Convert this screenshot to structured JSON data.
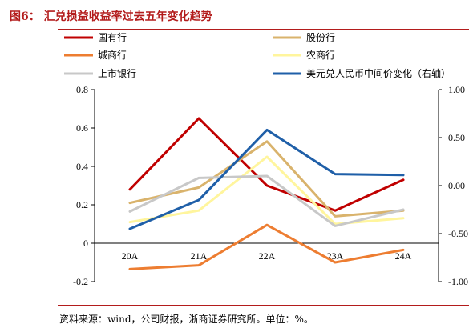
{
  "title": "图6：  汇兑损益收益率过去五年变化趋势",
  "source": "资料来源：wind，公司财报，浙商证券研究所。单位：%。",
  "chart_data": {
    "type": "line",
    "categories": [
      "20A",
      "21A",
      "22A",
      "23A",
      "24A"
    ],
    "ylim_left": [
      -0.2,
      0.8
    ],
    "yticks_left": [
      "0.8",
      "0.6",
      "0.4",
      "0.2",
      "0",
      "-0.2"
    ],
    "ylim_right": [
      -1.0,
      1.0
    ],
    "yticks_right": [
      "1.00",
      "0.50",
      "0.00",
      "-0.50",
      "-1.00"
    ],
    "series": [
      {
        "name": "国有行",
        "color": "#c00000",
        "axis": "left",
        "values": [
          0.28,
          0.65,
          0.3,
          0.17,
          0.33
        ]
      },
      {
        "name": "股份行",
        "color": "#d9b36c",
        "axis": "left",
        "values": [
          0.21,
          0.29,
          0.53,
          0.14,
          0.17
        ]
      },
      {
        "name": "城商行",
        "color": "#ed7d31",
        "axis": "left",
        "values": [
          -0.135,
          -0.115,
          0.095,
          -0.1,
          -0.035
        ]
      },
      {
        "name": "农商行",
        "color": "#fff59d",
        "axis": "left",
        "values": [
          0.11,
          0.17,
          0.45,
          0.1,
          0.13
        ]
      },
      {
        "name": "上市银行",
        "color": "#c8c8c8",
        "axis": "left",
        "values": [
          0.165,
          0.34,
          0.35,
          0.09,
          0.175
        ]
      },
      {
        "name": "美元兑人民币中间价变化（右轴）",
        "color": "#1f5fa8",
        "axis": "right",
        "values": [
          -0.45,
          -0.15,
          0.58,
          0.12,
          0.11
        ]
      }
    ]
  }
}
